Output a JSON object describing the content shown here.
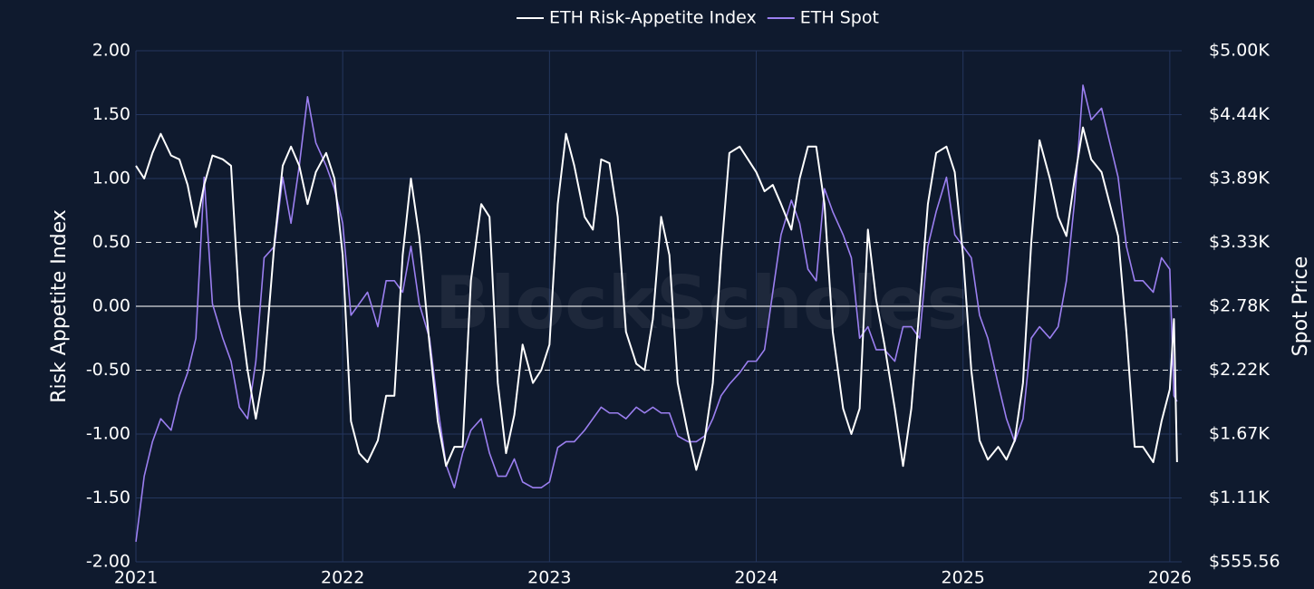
{
  "chart_data": {
    "type": "line",
    "legend_position": "top",
    "background": "#0f1a2e",
    "grid": true,
    "grid_color": "#24365e",
    "watermark": "BlockScholes",
    "y_label": "Risk Appetite Index",
    "y2_label": "Spot Price",
    "xlim": [
      2021,
      2026.04
    ],
    "xticks": [
      2021,
      2022,
      2023,
      2024,
      2025,
      2026
    ],
    "ylim": [
      -2,
      2
    ],
    "yticks": [
      {
        "value": -2,
        "label": "-2.00"
      },
      {
        "value": -1.5,
        "label": "-1.50"
      },
      {
        "value": -1,
        "label": "-1.00"
      },
      {
        "value": -0.5,
        "label": "-0.50"
      },
      {
        "value": 0,
        "label": "0.00"
      },
      {
        "value": 0.5,
        "label": "0.50"
      },
      {
        "value": 1,
        "label": "1.00"
      },
      {
        "value": 1.5,
        "label": "1.50"
      },
      {
        "value": 2,
        "label": "2.00"
      }
    ],
    "y2lim": [
      555.56,
      5000
    ],
    "y2ticks": [
      {
        "value": 555.56,
        "label": "$555.56"
      },
      {
        "value": 1111.11,
        "label": "$1.11K"
      },
      {
        "value": 1666.67,
        "label": "$1.67K"
      },
      {
        "value": 2222.22,
        "label": "$2.22K"
      },
      {
        "value": 2777.78,
        "label": "$2.78K"
      },
      {
        "value": 3333.33,
        "label": "$3.33K"
      },
      {
        "value": 3888.89,
        "label": "$3.89K"
      },
      {
        "value": 4444.44,
        "label": "$4.44K"
      },
      {
        "value": 5000,
        "label": "$5.00K"
      }
    ],
    "reference_lines": [
      {
        "value": 0,
        "style": "solid"
      },
      {
        "value": 0.5,
        "style": "dashed"
      },
      {
        "value": -0.5,
        "style": "dashed"
      }
    ],
    "x": [
      2021.0,
      2021.04,
      2021.08,
      2021.12,
      2021.17,
      2021.21,
      2021.25,
      2021.29,
      2021.33,
      2021.37,
      2021.42,
      2021.46,
      2021.5,
      2021.54,
      2021.58,
      2021.62,
      2021.67,
      2021.71,
      2021.75,
      2021.79,
      2021.83,
      2021.87,
      2021.92,
      2021.96,
      2022.0,
      2022.04,
      2022.08,
      2022.12,
      2022.17,
      2022.21,
      2022.25,
      2022.29,
      2022.33,
      2022.37,
      2022.42,
      2022.46,
      2022.5,
      2022.54,
      2022.58,
      2022.62,
      2022.67,
      2022.71,
      2022.75,
      2022.79,
      2022.83,
      2022.87,
      2022.92,
      2022.96,
      2023.0,
      2023.04,
      2023.08,
      2023.12,
      2023.17,
      2023.21,
      2023.25,
      2023.29,
      2023.33,
      2023.37,
      2023.42,
      2023.46,
      2023.5,
      2023.54,
      2023.58,
      2023.62,
      2023.67,
      2023.71,
      2023.75,
      2023.79,
      2023.83,
      2023.87,
      2023.92,
      2023.96,
      2024.0,
      2024.04,
      2024.08,
      2024.12,
      2024.17,
      2024.21,
      2024.25,
      2024.29,
      2024.33,
      2024.37,
      2024.42,
      2024.46,
      2024.5,
      2024.54,
      2024.58,
      2024.62,
      2024.67,
      2024.71,
      2024.75,
      2024.79,
      2024.83,
      2024.87,
      2024.92,
      2024.96,
      2025.0,
      2025.04,
      2025.08,
      2025.12,
      2025.17,
      2025.21,
      2025.25,
      2025.29,
      2025.33,
      2025.37,
      2025.42,
      2025.46,
      2025.5,
      2025.54,
      2025.58,
      2025.62,
      2025.67,
      2025.71,
      2025.75,
      2025.79,
      2025.83,
      2025.87,
      2025.92,
      2025.96,
      2026.0,
      2026.02,
      2026.035
    ],
    "series": [
      {
        "name": "ETH Risk-Appetite Index",
        "color": "#ffffff",
        "axis": "y",
        "values": [
          1.1,
          1.0,
          1.2,
          1.35,
          1.18,
          1.15,
          0.95,
          0.62,
          0.95,
          1.18,
          1.15,
          1.1,
          0.0,
          -0.5,
          -0.88,
          -0.5,
          0.5,
          1.1,
          1.25,
          1.1,
          0.8,
          1.05,
          1.2,
          1.0,
          0.4,
          -0.9,
          -1.15,
          -1.22,
          -1.05,
          -0.7,
          -0.7,
          0.4,
          1.0,
          0.55,
          -0.3,
          -0.9,
          -1.25,
          -1.1,
          -1.1,
          0.2,
          0.8,
          0.7,
          -0.6,
          -1.15,
          -0.85,
          -0.3,
          -0.6,
          -0.5,
          -0.3,
          0.8,
          1.35,
          1.1,
          0.7,
          0.6,
          1.15,
          1.12,
          0.7,
          -0.2,
          -0.45,
          -0.5,
          -0.1,
          0.7,
          0.4,
          -0.6,
          -1.0,
          -1.28,
          -1.05,
          -0.6,
          0.4,
          1.2,
          1.25,
          1.15,
          1.05,
          0.9,
          0.95,
          0.8,
          0.6,
          1.0,
          1.25,
          1.25,
          0.8,
          -0.2,
          -0.8,
          -1.0,
          -0.8,
          0.6,
          0.05,
          -0.3,
          -0.8,
          -1.25,
          -0.8,
          0.0,
          0.8,
          1.2,
          1.25,
          1.05,
          0.4,
          -0.5,
          -1.05,
          -1.2,
          -1.1,
          -1.2,
          -1.05,
          -0.6,
          0.5,
          1.3,
          1.0,
          0.7,
          0.55,
          1.0,
          1.4,
          1.15,
          1.05,
          0.8,
          0.55,
          -0.2,
          -1.1,
          -1.1,
          -1.22,
          -0.9,
          -0.65,
          -0.1,
          -1.22
        ]
      },
      {
        "name": "ETH Spot",
        "color": "#9b7ff0",
        "axis": "y2",
        "values": [
          730,
          1300,
          1600,
          1800,
          1700,
          2000,
          2200,
          2500,
          3900,
          2800,
          2500,
          2300,
          1900,
          1800,
          2300,
          3200,
          3300,
          3900,
          3500,
          4000,
          4600,
          4200,
          4000,
          3800,
          3500,
          2700,
          2800,
          2900,
          2600,
          3000,
          3000,
          2900,
          3300,
          2800,
          2500,
          1900,
          1400,
          1200,
          1500,
          1700,
          1800,
          1500,
          1300,
          1300,
          1450,
          1250,
          1200,
          1200,
          1250,
          1550,
          1600,
          1600,
          1700,
          1800,
          1900,
          1850,
          1850,
          1800,
          1900,
          1850,
          1900,
          1850,
          1850,
          1650,
          1600,
          1600,
          1650,
          1800,
          2000,
          2100,
          2200,
          2300,
          2300,
          2400,
          2900,
          3400,
          3700,
          3500,
          3100,
          3000,
          3800,
          3600,
          3400,
          3200,
          2500,
          2600,
          2400,
          2400,
          2300,
          2600,
          2600,
          2500,
          3300,
          3600,
          3900,
          3400,
          3300,
          3200,
          2700,
          2500,
          2100,
          1800,
          1600,
          1800,
          2500,
          2600,
          2500,
          2600,
          3000,
          3700,
          4700,
          4400,
          4500,
          4200,
          3900,
          3300,
          3000,
          3000,
          2900,
          3200,
          3100,
          2000,
          1950
        ]
      }
    ]
  }
}
